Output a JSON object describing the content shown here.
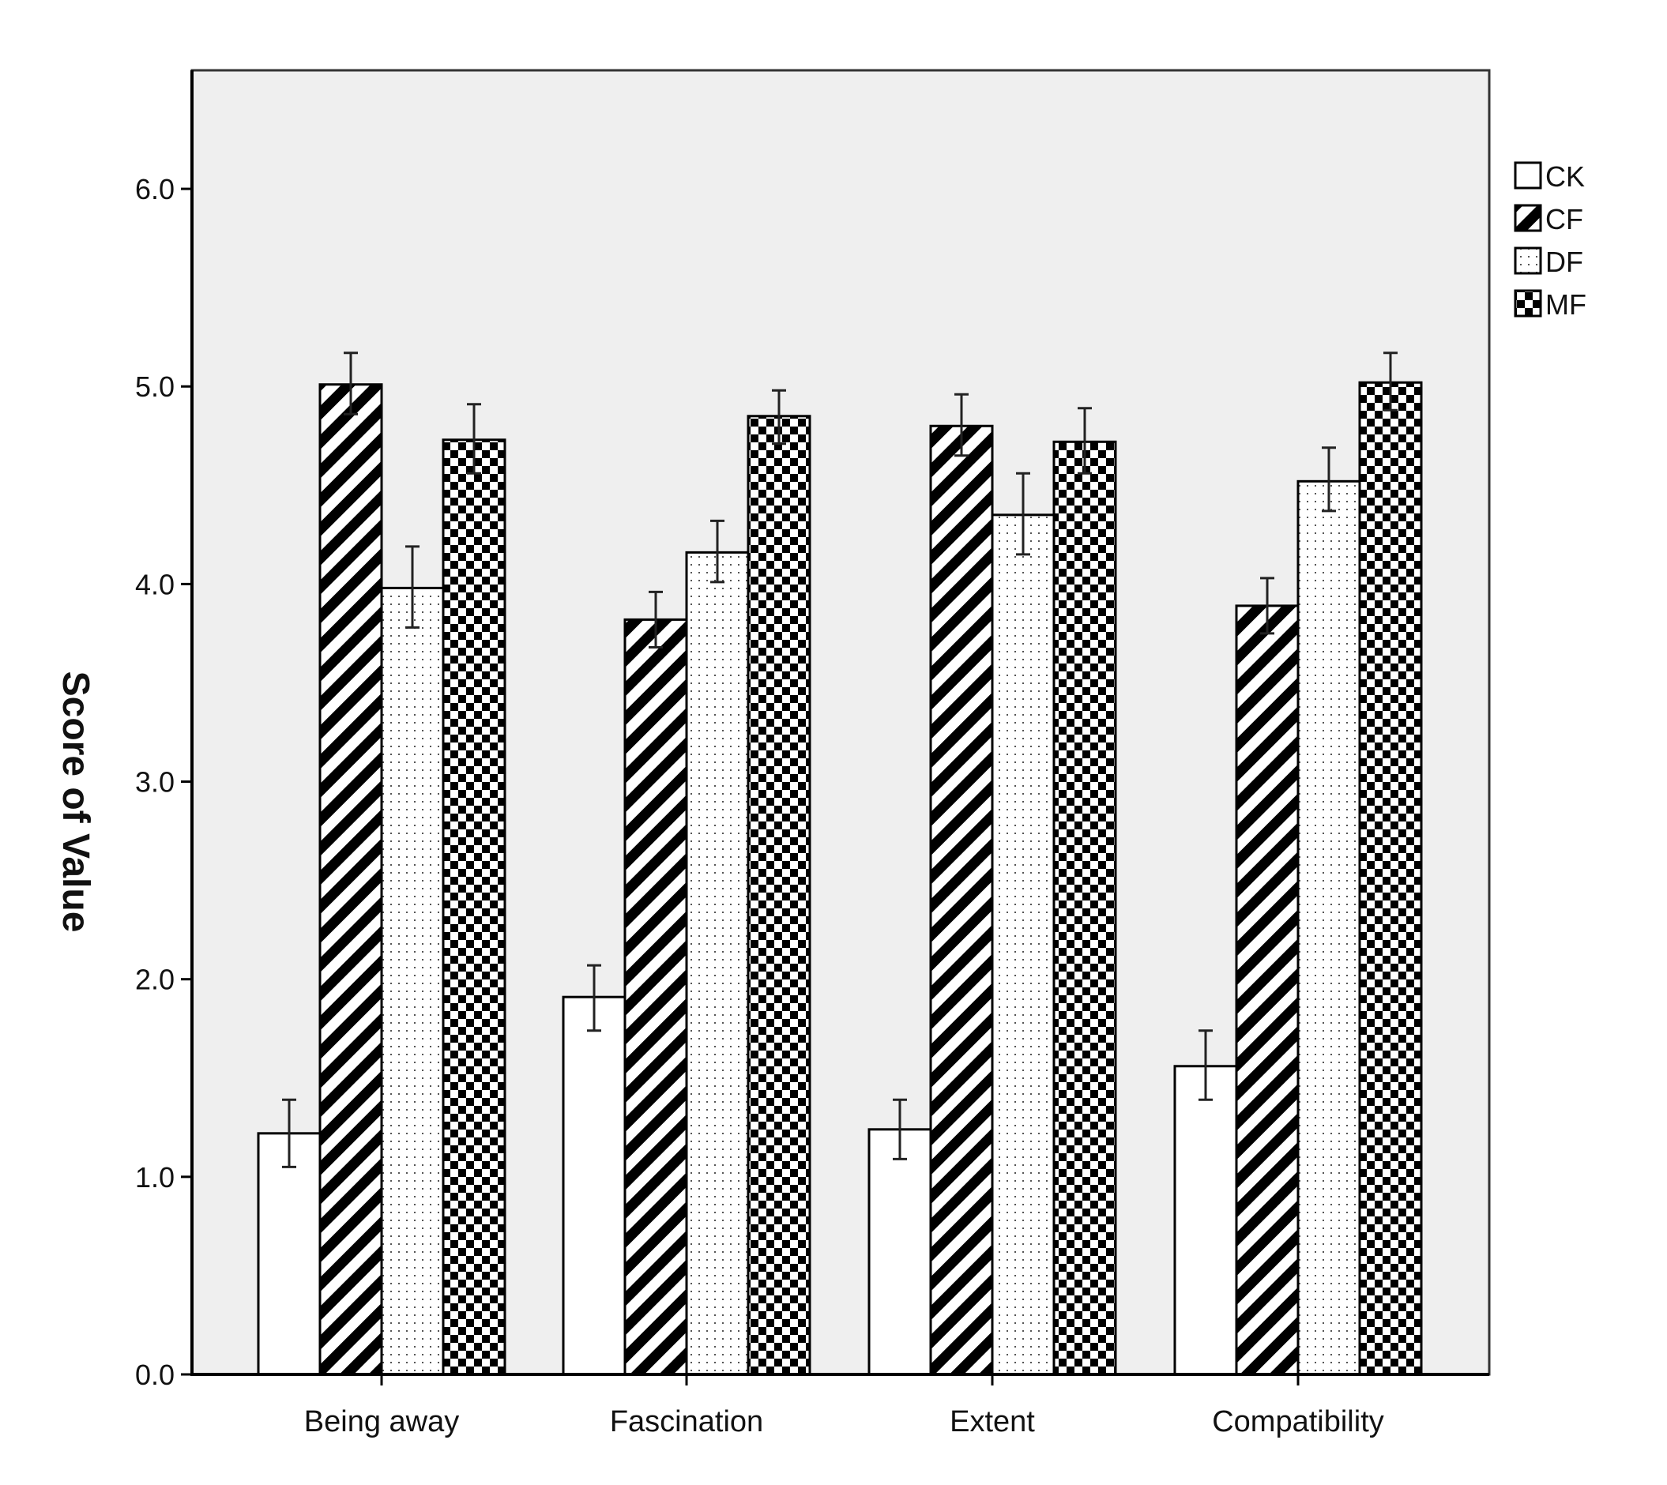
{
  "chart_data": {
    "type": "bar",
    "title": "",
    "xlabel": "",
    "ylabel": "Score of Value",
    "ylim": [
      0,
      6.6
    ],
    "yticks": [
      "0.0",
      "1.0",
      "2.0",
      "3.0",
      "4.0",
      "5.0",
      "6.0"
    ],
    "grid": false,
    "legend_position": "top-right",
    "categories": [
      "Being away",
      "Fascination",
      "Extent",
      "Compatibility"
    ],
    "series": [
      {
        "name": "CK",
        "pattern": "empty",
        "values": [
          1.22,
          1.91,
          1.24,
          1.56
        ],
        "err_low": [
          1.05,
          1.74,
          1.09,
          1.39
        ],
        "err_high": [
          1.39,
          2.07,
          1.39,
          1.74
        ]
      },
      {
        "name": "CF",
        "pattern": "diagonal",
        "values": [
          5.01,
          3.82,
          4.8,
          3.89
        ],
        "err_low": [
          4.86,
          3.68,
          4.65,
          3.75
        ],
        "err_high": [
          5.17,
          3.96,
          4.96,
          4.03
        ]
      },
      {
        "name": "DF",
        "pattern": "dots",
        "values": [
          3.98,
          4.16,
          4.35,
          4.52
        ],
        "err_low": [
          3.78,
          4.01,
          4.15,
          4.37
        ],
        "err_high": [
          4.19,
          4.32,
          4.56,
          4.69
        ]
      },
      {
        "name": "MF",
        "pattern": "checker",
        "values": [
          4.73,
          4.85,
          4.72,
          5.02
        ],
        "err_low": [
          4.56,
          4.71,
          4.56,
          4.88
        ],
        "err_high": [
          4.91,
          4.98,
          4.89,
          5.17
        ]
      }
    ],
    "colors": {
      "plot_background": "#efefef",
      "bar_fill": "#ffffff",
      "bar_pattern": "#000000",
      "axis": "#000000"
    }
  }
}
